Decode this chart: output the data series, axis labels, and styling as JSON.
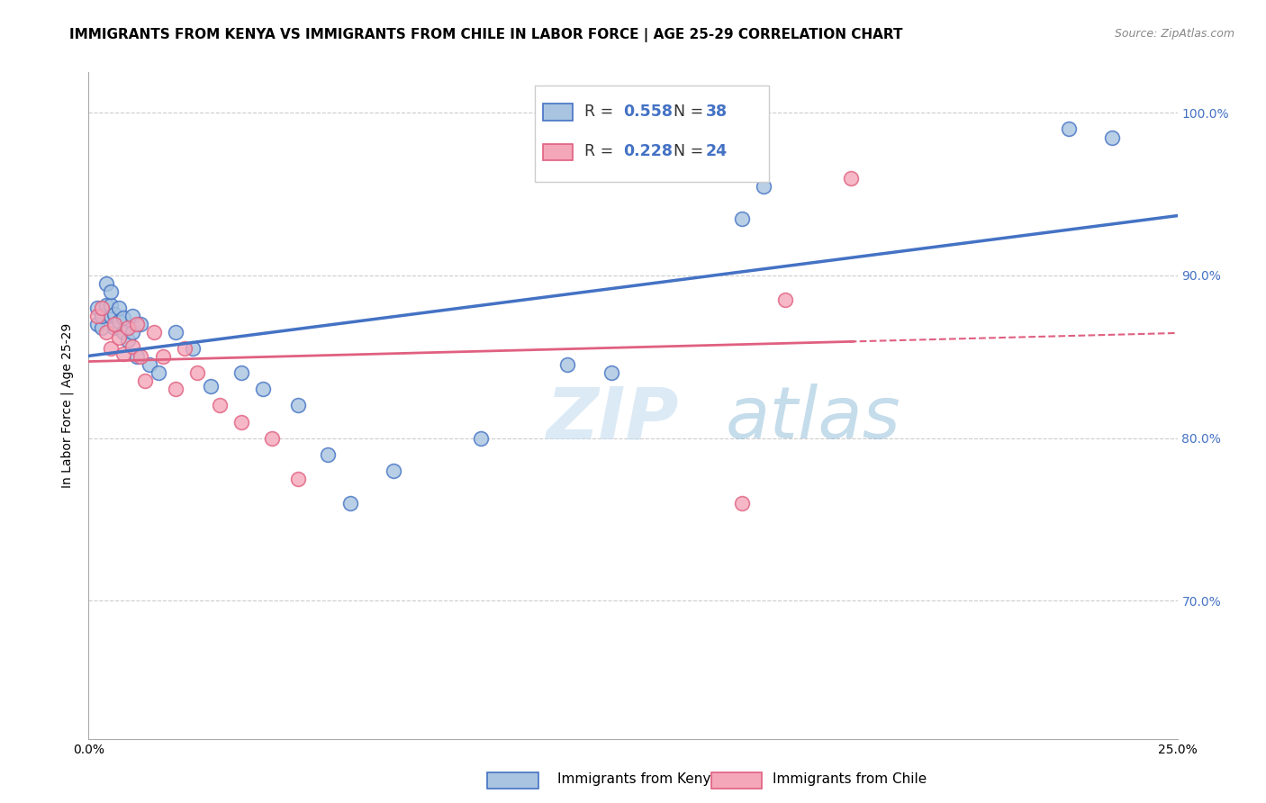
{
  "title": "IMMIGRANTS FROM KENYA VS IMMIGRANTS FROM CHILE IN LABOR FORCE | AGE 25-29 CORRELATION CHART",
  "source": "Source: ZipAtlas.com",
  "ylabel": "In Labor Force | Age 25-29",
  "x_min": 0.0,
  "x_max": 0.25,
  "y_min": 0.615,
  "y_max": 1.025,
  "y_ticks": [
    0.7,
    0.8,
    0.9,
    1.0
  ],
  "y_tick_labels": [
    "70.0%",
    "80.0%",
    "90.0%",
    "100.0%"
  ],
  "kenya_color": "#a8c4e0",
  "chile_color": "#f4a7b9",
  "kenya_line_color": "#4472c4",
  "chile_line_color": "#e06080",
  "R_kenya": 0.558,
  "N_kenya": 38,
  "R_chile": 0.228,
  "N_chile": 24,
  "kenya_x": [
    0.002,
    0.002,
    0.003,
    0.003,
    0.004,
    0.004,
    0.005,
    0.005,
    0.005,
    0.006,
    0.006,
    0.007,
    0.007,
    0.008,
    0.008,
    0.009,
    0.01,
    0.01,
    0.011,
    0.012,
    0.014,
    0.016,
    0.02,
    0.024,
    0.028,
    0.035,
    0.04,
    0.048,
    0.055,
    0.06,
    0.07,
    0.09,
    0.11,
    0.12,
    0.15,
    0.155,
    0.225,
    0.235
  ],
  "kenya_y": [
    0.87,
    0.88,
    0.868,
    0.875,
    0.882,
    0.895,
    0.875,
    0.882,
    0.89,
    0.868,
    0.876,
    0.872,
    0.88,
    0.865,
    0.874,
    0.86,
    0.875,
    0.865,
    0.85,
    0.87,
    0.845,
    0.84,
    0.865,
    0.855,
    0.832,
    0.84,
    0.83,
    0.82,
    0.79,
    0.76,
    0.78,
    0.8,
    0.845,
    0.84,
    0.935,
    0.955,
    0.99,
    0.985
  ],
  "chile_x": [
    0.002,
    0.003,
    0.004,
    0.005,
    0.006,
    0.007,
    0.008,
    0.009,
    0.01,
    0.011,
    0.012,
    0.013,
    0.015,
    0.017,
    0.02,
    0.022,
    0.025,
    0.03,
    0.035,
    0.042,
    0.048,
    0.15,
    0.16,
    0.175
  ],
  "chile_y": [
    0.875,
    0.88,
    0.865,
    0.855,
    0.87,
    0.862,
    0.852,
    0.868,
    0.856,
    0.87,
    0.85,
    0.835,
    0.865,
    0.85,
    0.83,
    0.855,
    0.84,
    0.82,
    0.81,
    0.8,
    0.775,
    0.76,
    0.885,
    0.96
  ],
  "title_fontsize": 11,
  "label_fontsize": 10,
  "tick_fontsize": 10
}
